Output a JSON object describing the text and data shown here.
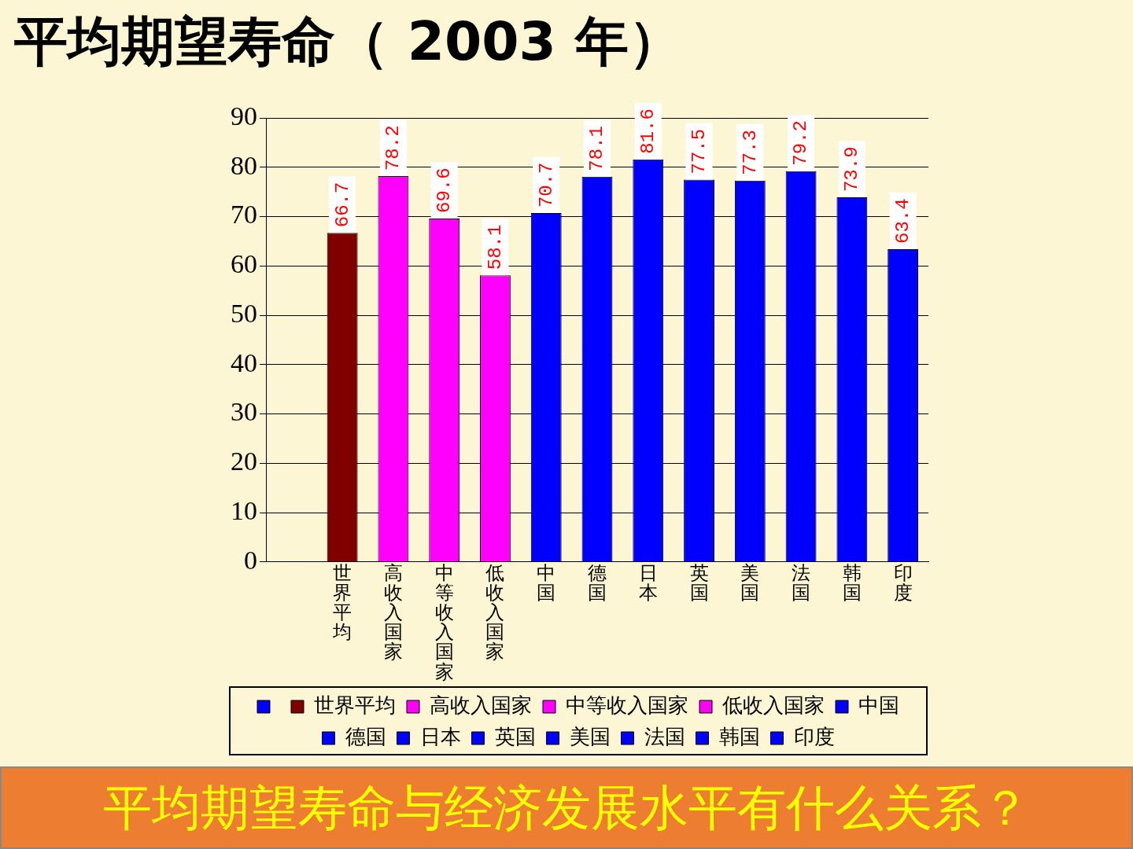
{
  "chart_data": {
    "type": "bar",
    "title": "平均期望寿命（ 2003 年）",
    "categories": [
      null,
      "世界平均",
      "高收入国家",
      "中等收入国家",
      "低收入国家",
      "中国",
      "德国",
      "日本",
      "英国",
      "美国",
      "法国",
      "韩国",
      "印度"
    ],
    "series": [
      {
        "color": "#0000ff",
        "values": [
          null,
          null,
          null,
          null,
          null,
          null,
          null,
          null,
          null,
          null,
          null,
          null,
          null
        ]
      },
      {
        "name": "世界平均",
        "color": "#800000",
        "values": [
          null,
          66.7,
          null,
          null,
          null,
          null,
          null,
          null,
          null,
          null,
          null,
          null,
          null
        ]
      },
      {
        "name": "高收入国家",
        "color": "#ff00ff",
        "values": [
          null,
          null,
          78.2,
          null,
          null,
          null,
          null,
          null,
          null,
          null,
          null,
          null,
          null
        ]
      },
      {
        "name": "中等收入国家",
        "color": "#ff00ff",
        "values": [
          null,
          null,
          null,
          69.6,
          null,
          null,
          null,
          null,
          null,
          null,
          null,
          null,
          null
        ]
      },
      {
        "name": "低收入国家",
        "color": "#ff00ff",
        "values": [
          null,
          null,
          null,
          null,
          58.1,
          null,
          null,
          null,
          null,
          null,
          null,
          null,
          null
        ]
      },
      {
        "name": "中国",
        "color": "#0000ff",
        "values": [
          null,
          null,
          null,
          null,
          null,
          70.7,
          null,
          null,
          null,
          null,
          null,
          null,
          null
        ]
      },
      {
        "name": "德国",
        "color": "#0000ff",
        "values": [
          null,
          null,
          null,
          null,
          null,
          null,
          78.1,
          null,
          null,
          null,
          null,
          null,
          null
        ]
      },
      {
        "name": "日本",
        "color": "#0000ff",
        "values": [
          null,
          null,
          null,
          null,
          null,
          null,
          null,
          81.6,
          null,
          null,
          null,
          null,
          null
        ]
      },
      {
        "name": "英国",
        "color": "#0000ff",
        "values": [
          null,
          null,
          null,
          null,
          null,
          null,
          null,
          null,
          77.5,
          null,
          null,
          null,
          null
        ]
      },
      {
        "name": "美国",
        "color": "#0000ff",
        "values": [
          null,
          null,
          null,
          null,
          null,
          null,
          null,
          null,
          null,
          77.3,
          null,
          null,
          null
        ]
      },
      {
        "name": "法国",
        "color": "#0000ff",
        "values": [
          null,
          null,
          null,
          null,
          null,
          null,
          null,
          null,
          null,
          null,
          79.2,
          null,
          null
        ]
      },
      {
        "name": "韩国",
        "color": "#0000ff",
        "values": [
          null,
          null,
          null,
          null,
          null,
          null,
          null,
          null,
          null,
          null,
          null,
          73.9,
          null
        ]
      },
      {
        "name": "印度",
        "color": "#0000ff",
        "values": [
          null,
          null,
          null,
          null,
          null,
          null,
          null,
          null,
          null,
          null,
          null,
          null,
          63.4
        ]
      }
    ],
    "stacked": true,
    "ylim": [
      0,
      90
    ],
    "yticks": [
      0,
      10,
      20,
      30,
      40,
      50,
      60,
      70,
      80,
      90
    ],
    "grid": "y",
    "data_labels": true,
    "legend": "bottom",
    "annotations": [
      "平均期望寿命与经济发展水平有什么关系？"
    ]
  }
}
